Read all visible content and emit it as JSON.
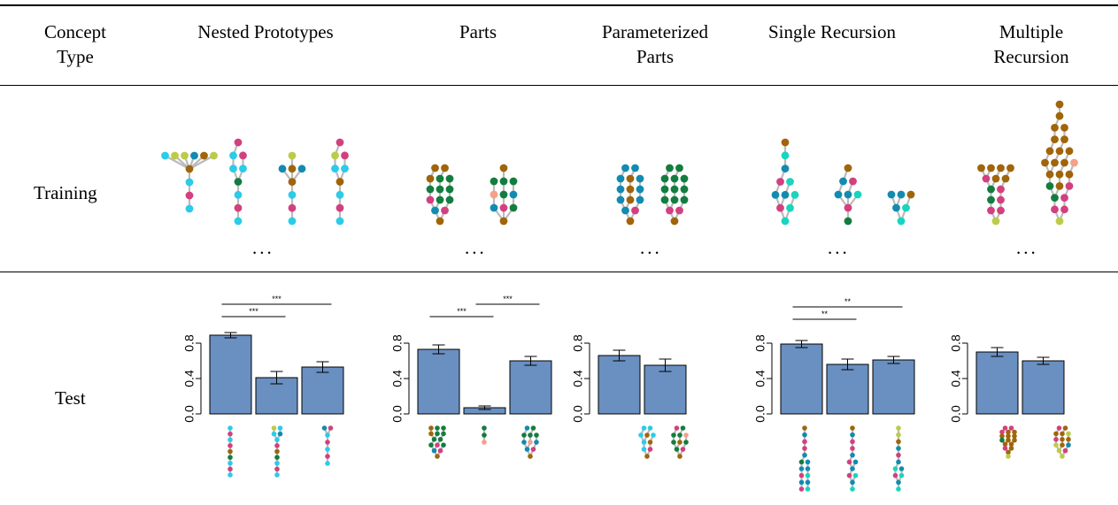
{
  "colors": {
    "bar": "#6a8fc1",
    "cyan": "#2bcbea",
    "magenta": "#d2407f",
    "green": "#137d3f",
    "brown": "#a0650a",
    "lime": "#bccb4a",
    "teal": "#128bb0",
    "aqua": "#19d4bf",
    "salmon": "#f5a08a",
    "edge": "#bbbbbb"
  },
  "header": {
    "row_header": "Concept\nType",
    "columns": [
      "Nested Prototypes",
      "Parts",
      "Parameterized\nParts",
      "Single Recursion",
      "Multiple\nRecursion"
    ]
  },
  "rows": {
    "training_label": "Training",
    "test_label": "Test",
    "ellipsis": "..."
  },
  "chart_data": [
    {
      "type": "bar",
      "concept": "Nested Prototypes",
      "values": [
        0.89,
        0.41,
        0.53
      ],
      "errors": [
        0.03,
        0.07,
        0.06
      ],
      "ylim": [
        0,
        1
      ],
      "yticks": [
        "0.0",
        "0.4",
        "0.8"
      ],
      "significance": [
        {
          "from": 0,
          "to": 1,
          "label": "***"
        },
        {
          "from": 0,
          "to": 2,
          "label": "***"
        }
      ]
    },
    {
      "type": "bar",
      "concept": "Parts",
      "values": [
        0.73,
        0.07,
        0.6
      ],
      "errors": [
        0.05,
        0.02,
        0.05
      ],
      "ylim": [
        0,
        1
      ],
      "yticks": [
        "0.0",
        "0.4",
        "0.8"
      ],
      "significance": [
        {
          "from": 0,
          "to": 1,
          "label": "***"
        },
        {
          "from": 1,
          "to": 2,
          "label": "***"
        }
      ]
    },
    {
      "type": "bar",
      "concept": "Parameterized Parts",
      "values": [
        0.66,
        0.55
      ],
      "errors": [
        0.06,
        0.07
      ],
      "ylim": [
        0,
        1
      ],
      "yticks": [
        "0.0",
        "0.4",
        "0.8"
      ],
      "significance": []
    },
    {
      "type": "bar",
      "concept": "Single Recursion",
      "values": [
        0.79,
        0.56,
        0.61
      ],
      "errors": [
        0.04,
        0.06,
        0.04
      ],
      "ylim": [
        0,
        1
      ],
      "yticks": [
        "0.0",
        "0.4",
        "0.8"
      ],
      "significance": [
        {
          "from": 0,
          "to": 1,
          "label": "**"
        },
        {
          "from": 0,
          "to": 2,
          "label": "**"
        }
      ]
    },
    {
      "type": "bar",
      "concept": "Multiple Recursion",
      "values": [
        0.7,
        0.6
      ],
      "errors": [
        0.05,
        0.04
      ],
      "ylim": [
        0,
        1
      ],
      "yticks": [
        "0.0",
        "0.4",
        "0.8"
      ],
      "significance": []
    }
  ],
  "trees": {
    "training": [
      [
        [
          "cyan+lime,lime|teal+brown+lime",
          "brown",
          "cyan",
          "magenta",
          "cyan"
        ],
        [
          "magenta",
          "cyan+magenta",
          "cyan+cyan",
          "green",
          "cyan",
          "magenta",
          "cyan"
        ],
        [
          "lime",
          "teal+brown+teal",
          "brown",
          "cyan",
          "magenta",
          "cyan"
        ],
        [
          "magenta",
          "lime+magenta",
          "cyan+cyan",
          "brown",
          "cyan",
          "magenta",
          "cyan"
        ]
      ],
      [
        [
          "brown,brown",
          "brown+green,green",
          "green,green,green",
          "magenta,green,green",
          "teal,magenta",
          "brown"
        ],
        [
          "brown",
          "green+green,green",
          "salmon,green,teal",
          "teal,magenta,green",
          "brown"
        ]
      ],
      [
        [
          "teal,teal",
          "teal,brown,teal",
          "teal,brown,teal",
          "teal,brown,teal",
          "teal,magenta",
          "brown"
        ],
        [
          "green,green",
          "green,green,green",
          "green,green,green",
          "green,green,green",
          "magenta,magenta",
          "brown"
        ]
      ],
      [
        [
          "brown",
          "aqua",
          "teal",
          "magenta,aqua",
          "teal,teal,aqua",
          "magenta,aqua",
          "aqua"
        ],
        [
          "brown",
          "teal,magenta",
          "teal,teal,aqua",
          "magenta",
          "green"
        ],
        [
          "teal,teal,brown",
          "teal,aqua",
          "aqua"
        ]
      ],
      [
        [
          "brown,brown,brown,brown",
          "magenta,brown,brown",
          "green,magenta",
          "green,magenta",
          "magenta,magenta",
          "lime"
        ],
        [
          "brown",
          "brown",
          "brown,brown",
          "brown,brown",
          "brown,brown,brown",
          "brown,brown,brown,salmon",
          "brown,brown,brown",
          "green,brown,magenta",
          "green,magenta",
          "magenta,magenta",
          "lime"
        ]
      ]
    ],
    "test": [
      [
        [
          "cyan",
          "magenta",
          "cyan",
          "magenta",
          "brown",
          "green",
          "cyan",
          "magenta",
          "cyan"
        ],
        [
          "lime,cyan",
          "cyan,teal",
          "cyan",
          "magenta",
          "brown",
          "green",
          "cyan",
          "magenta",
          "cyan"
        ],
        [
          "teal,magenta",
          "cyan",
          "magenta",
          "cyan",
          "magenta",
          "cyan"
        ]
      ],
      [
        [
          "brown,green,green",
          "brown,green,green",
          "green,green",
          "green,magenta,green",
          "teal,magenta",
          "brown"
        ],
        [
          "green",
          "green",
          "salmon"
        ],
        [
          "teal,green",
          "green,green,green",
          "teal,salmon,teal",
          "teal,magenta",
          "brown"
        ]
      ],
      [
        [
          "cyan,cyan",
          "cyan,brown,cyan",
          "cyan,brown",
          "cyan,magenta",
          "brown"
        ],
        [
          "magenta,green",
          "green,green,salmon",
          "green,brown,green",
          "green,magenta",
          "brown"
        ]
      ],
      [
        [
          "brown",
          "teal",
          "magenta",
          "magenta",
          "teal",
          "green,teal",
          "teal,teal",
          "magenta,aqua",
          "teal,teal",
          "magenta,aqua"
        ],
        [
          "brown",
          "teal",
          "magenta",
          "magenta",
          "teal",
          "magenta,teal",
          "teal",
          "magenta,aqua",
          "teal",
          "aqua"
        ],
        [
          "lime",
          "lime",
          "brown",
          "teal",
          "magenta",
          "teal",
          "aqua,teal",
          "magenta,aqua",
          "teal",
          "aqua"
        ]
      ],
      [
        [
          "magenta,magenta",
          "magenta,brown,brown",
          "brown,brown,brown",
          "green,brown,brown",
          "brown,brown",
          "magenta,brown",
          "brown",
          "lime"
        ],
        [
          "magenta,brown",
          "brown,brown,lime",
          "magenta,brown,brown",
          "lime,brown,teal",
          "lime,magenta",
          "lime"
        ]
      ]
    ]
  }
}
